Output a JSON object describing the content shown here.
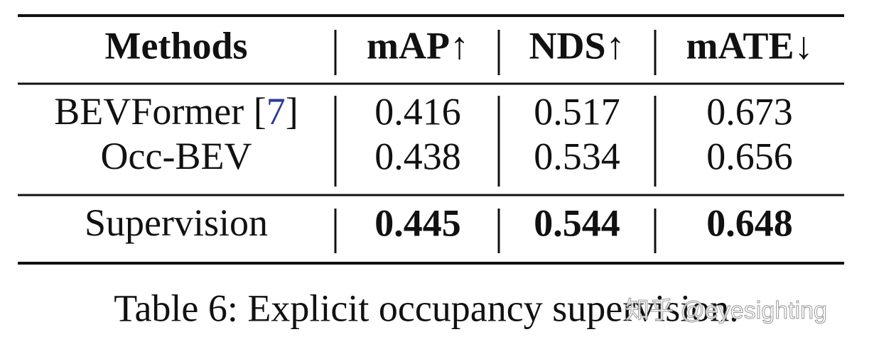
{
  "table": {
    "header": [
      "Methods",
      "mAP↑",
      "NDS↑",
      "mATE↓"
    ],
    "groups": [
      [
        {
          "method": [
            "BEVFormer [",
            "7",
            "]"
          ],
          "cells": [
            "0.416",
            "0.517",
            "0.673"
          ]
        },
        {
          "method": [
            "Occ-BEV"
          ],
          "cells": [
            "0.438",
            "0.534",
            "0.656"
          ]
        }
      ],
      [
        {
          "method": [
            "Supervision"
          ],
          "cells": [
            "0.445",
            "0.544",
            "0.648"
          ],
          "bold": true
        }
      ]
    ]
  },
  "caption": "Table 6: Explicit occupancy supervision.",
  "watermark": "知乎 @eyesighting"
}
